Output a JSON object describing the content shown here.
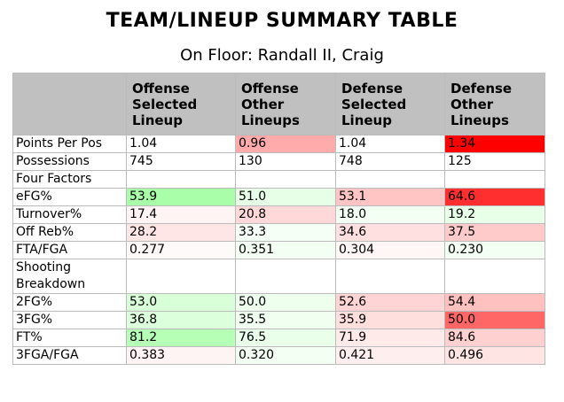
{
  "title": "TEAM/LINEUP SUMMARY TABLE",
  "subtitle": "On Floor: Randall II, Craig",
  "columns": [
    "",
    "Offense Selected Lineup",
    "Offense Other Lineups",
    "Defense Selected Lineup",
    "Defense Other Lineups"
  ],
  "rows": [
    {
      "label": "Points Per Pos",
      "values": [
        "1.04",
        "0.96",
        "1.04",
        "1.34"
      ],
      "colors": [
        "#ffffff",
        "#ffabab",
        "#ffffff",
        "#ff0000"
      ]
    },
    {
      "label": "Possessions",
      "values": [
        "745",
        "130",
        "748",
        "125"
      ],
      "colors": [
        "#ffffff",
        "#ffffff",
        "#ffffff",
        "#ffffff"
      ]
    },
    {
      "label": "Four Factors",
      "values": [
        "",
        "",
        "",
        ""
      ],
      "colors": [
        "#ffffff",
        "#ffffff",
        "#ffffff",
        "#ffffff"
      ]
    },
    {
      "label": "eFG%",
      "values": [
        "53.9",
        "51.0",
        "53.1",
        "64.6"
      ],
      "colors": [
        "#a9ffa9",
        "#e7ffe7",
        "#ffc4c4",
        "#ff2f2f"
      ]
    },
    {
      "label": "Turnover%",
      "values": [
        "17.4",
        "20.8",
        "18.0",
        "19.2"
      ],
      "colors": [
        "#fff4f4",
        "#ffd9d9",
        "#f4fff4",
        "#e8ffe8"
      ]
    },
    {
      "label": "Off Reb%",
      "values": [
        "28.2",
        "33.3",
        "34.6",
        "37.5"
      ],
      "colors": [
        "#ffe6e6",
        "#f6fff6",
        "#ffe0e0",
        "#ffcaca"
      ]
    },
    {
      "label": "FTA/FGA",
      "values": [
        "0.277",
        "0.351",
        "0.304",
        "0.230"
      ],
      "colors": [
        "#fffafa",
        "#f4fff4",
        "#fff6f6",
        "#f4fff4"
      ]
    },
    {
      "label": "Shooting Breakdown",
      "values": [
        "",
        "",
        "",
        ""
      ],
      "colors": [
        "#ffffff",
        "#ffffff",
        "#ffffff",
        "#ffffff"
      ]
    },
    {
      "label": "2FG%",
      "values": [
        "53.0",
        "50.0",
        "52.6",
        "54.4"
      ],
      "colors": [
        "#d9ffd9",
        "#eeffee",
        "#ffd4d4",
        "#ffc0c0"
      ]
    },
    {
      "label": "3FG%",
      "values": [
        "36.8",
        "35.5",
        "35.9",
        "50.0"
      ],
      "colors": [
        "#dcffdc",
        "#f0fff0",
        "#ffdede",
        "#ff6767"
      ]
    },
    {
      "label": "FT%",
      "values": [
        "81.2",
        "76.5",
        "71.9",
        "84.6"
      ],
      "colors": [
        "#b6ffb6",
        "#eaffea",
        "#ffeaea",
        "#ffd0d0"
      ]
    },
    {
      "label": "3FGA/FGA",
      "values": [
        "0.383",
        "0.320",
        "0.421",
        "0.496"
      ],
      "colors": [
        "#fff4f4",
        "#f2fff2",
        "#ffeeee",
        "#ffe4e4"
      ]
    }
  ]
}
